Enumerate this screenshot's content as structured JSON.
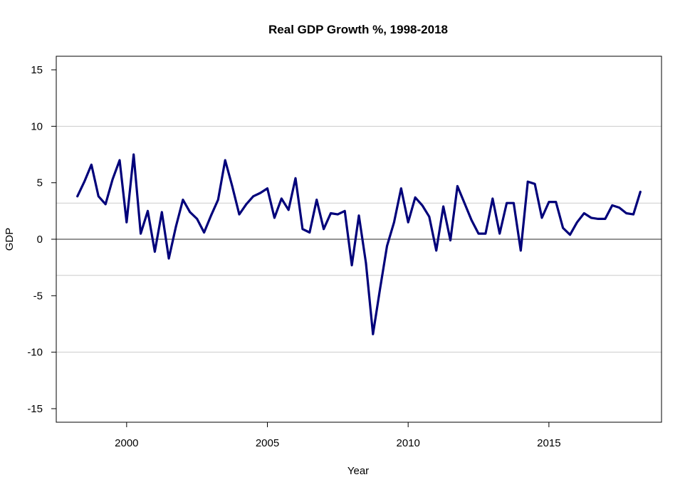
{
  "chart_data": {
    "type": "line",
    "title": "Real GDP Growth %, 1998-2018",
    "xlabel": "Year",
    "ylabel": "GDP",
    "xlim": [
      1997.5,
      2019.0
    ],
    "ylim": [
      -16.2,
      16.2
    ],
    "x_ticks": [
      2000,
      2005,
      2010,
      2015
    ],
    "y_ticks": [
      -15,
      -10,
      -5,
      0,
      5,
      10,
      15
    ],
    "grid_lines_y": [
      10,
      3.2,
      -3.2,
      -10
    ],
    "zero_line": 0,
    "line_color": "#00007a",
    "grid_color": "#cccccc",
    "series": [
      {
        "x": [
          1998.25,
          1998.5,
          1998.75,
          1999.0,
          1999.25,
          1999.5,
          1999.75,
          2000.0,
          2000.25,
          2000.5,
          2000.75,
          2001.0,
          2001.25,
          2001.5,
          2001.75,
          2002.0,
          2002.25,
          2002.5,
          2002.75,
          2003.0,
          2003.25,
          2003.5,
          2003.75,
          2004.0,
          2004.25,
          2004.5,
          2004.75,
          2005.0,
          2005.25,
          2005.5,
          2005.75,
          2006.0,
          2006.25,
          2006.5,
          2006.75,
          2007.0,
          2007.25,
          2007.5,
          2007.75,
          2008.0,
          2008.25,
          2008.5,
          2008.75,
          2009.0,
          2009.25,
          2009.5,
          2009.75,
          2010.0,
          2010.25,
          2010.5,
          2010.75,
          2011.0,
          2011.25,
          2011.5,
          2011.75,
          2012.0,
          2012.25,
          2012.5,
          2012.75,
          2013.0,
          2013.25,
          2013.5,
          2013.75,
          2014.0,
          2014.25,
          2014.5,
          2014.75,
          2015.0,
          2015.25,
          2015.5,
          2015.75,
          2016.0,
          2016.25,
          2016.5,
          2016.75,
          2017.0,
          2017.25,
          2017.5,
          2017.75,
          2018.0,
          2018.25
        ],
        "y": [
          3.8,
          5.1,
          6.6,
          3.8,
          3.1,
          5.3,
          7.0,
          1.5,
          7.5,
          0.5,
          2.5,
          -1.1,
          2.4,
          -1.7,
          1.1,
          3.5,
          2.4,
          1.8,
          0.6,
          2.1,
          3.5,
          7.0,
          4.7,
          2.2,
          3.1,
          3.8,
          4.1,
          4.5,
          1.9,
          3.6,
          2.6,
          5.4,
          0.9,
          0.6,
          3.5,
          0.9,
          2.3,
          2.2,
          2.5,
          -2.3,
          2.1,
          -2.1,
          -8.4,
          -4.4,
          -0.6,
          1.5,
          4.5,
          1.5,
          3.7,
          3.0,
          2.0,
          -1.0,
          2.9,
          -0.1,
          4.7,
          3.2,
          1.7,
          0.5,
          0.5,
          3.6,
          0.5,
          3.2,
          3.2,
          -1.0,
          5.1,
          4.9,
          1.9,
          3.3,
          3.3,
          1.0,
          0.4,
          1.5,
          2.3,
          1.9,
          1.8,
          1.8,
          3.0,
          2.8,
          2.3,
          2.2,
          4.2
        ]
      }
    ]
  }
}
